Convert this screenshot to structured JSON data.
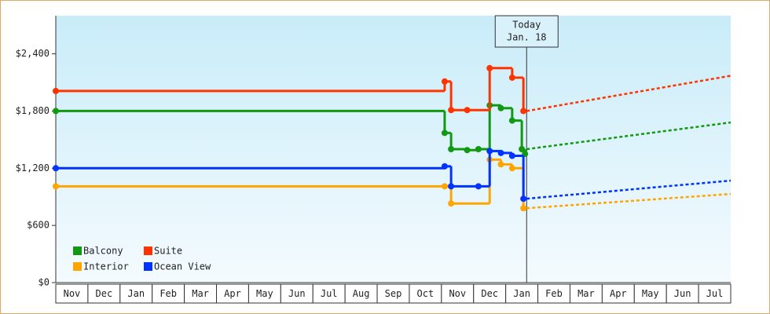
{
  "chart_data": {
    "type": "step-line",
    "xlim": [
      0,
      21
    ],
    "ylim": [
      0,
      2800
    ],
    "yticks": [
      {
        "value": 0,
        "label": "$0"
      },
      {
        "value": 600,
        "label": "$600"
      },
      {
        "value": 1200,
        "label": "$1,200"
      },
      {
        "value": 1800,
        "label": "$1,800"
      },
      {
        "value": 2400,
        "label": "$2,400"
      }
    ],
    "categories": [
      "Nov",
      "Dec",
      "Jan",
      "Feb",
      "Mar",
      "Apr",
      "May",
      "Jun",
      "Jul",
      "Aug",
      "Sep",
      "Oct",
      "Nov",
      "Dec",
      "Jan",
      "Feb",
      "Mar",
      "Apr",
      "May",
      "Jun",
      "Jul"
    ],
    "annotation": {
      "x": 14.65,
      "lines": [
        "Today",
        "Jan. 18"
      ]
    },
    "series": [
      {
        "name": "Balcony",
        "color": "#119911",
        "x": [
          0,
          12.1,
          12.3,
          12.8,
          13.15,
          13.5,
          13.85,
          14.2,
          14.5,
          14.6
        ],
        "values": [
          1800,
          1570,
          1400,
          1390,
          1400,
          1860,
          1830,
          1700,
          1400,
          1350
        ],
        "projection": {
          "x": [
            14.65,
            21
          ],
          "values": [
            1400,
            1680
          ]
        }
      },
      {
        "name": "Suite",
        "color": "#ff3300",
        "x": [
          0,
          12.1,
          12.3,
          12.8,
          13.5,
          14.2,
          14.55
        ],
        "values": [
          2010,
          2110,
          1810,
          1810,
          2250,
          2150,
          1800
        ],
        "projection": {
          "x": [
            14.65,
            21
          ],
          "values": [
            1800,
            2170
          ]
        }
      },
      {
        "name": "Interior",
        "color": "#ffa500",
        "x": [
          0,
          12.1,
          12.3,
          13.5,
          13.85,
          14.2,
          14.55
        ],
        "values": [
          1010,
          1010,
          830,
          1290,
          1240,
          1200,
          780
        ],
        "projection": {
          "x": [
            14.65,
            21
          ],
          "values": [
            780,
            930
          ]
        }
      },
      {
        "name": "Ocean View",
        "color": "#0033ff",
        "x": [
          0,
          12.1,
          12.3,
          13.15,
          13.5,
          13.85,
          14.2,
          14.55
        ],
        "values": [
          1200,
          1220,
          1010,
          1010,
          1380,
          1360,
          1330,
          880
        ],
        "projection": {
          "x": [
            14.65,
            21
          ],
          "values": [
            880,
            1070
          ]
        }
      }
    ]
  }
}
